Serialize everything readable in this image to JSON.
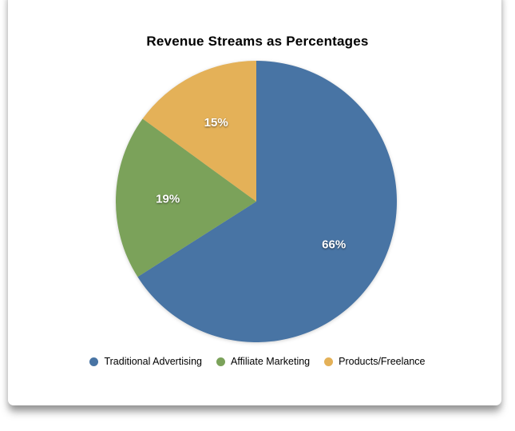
{
  "chart_data": {
    "type": "pie",
    "title": "Revenue Streams as Percentages",
    "items": [
      {
        "label": "Traditional Advertising",
        "value": 66,
        "percent_label": "66%",
        "color": "#4874A4"
      },
      {
        "label": "Affiliate Marketing",
        "value": 19,
        "percent_label": "19%",
        "color": "#7BA25A"
      },
      {
        "label": "Products/Freelance",
        "value": 15,
        "percent_label": "15%",
        "color": "#E4B158"
      }
    ],
    "start_angle_deg": 0,
    "direction": "clockwise",
    "legend_position": "bottom",
    "slice_label_color": "#ffffff",
    "title_color": "#000000"
  }
}
